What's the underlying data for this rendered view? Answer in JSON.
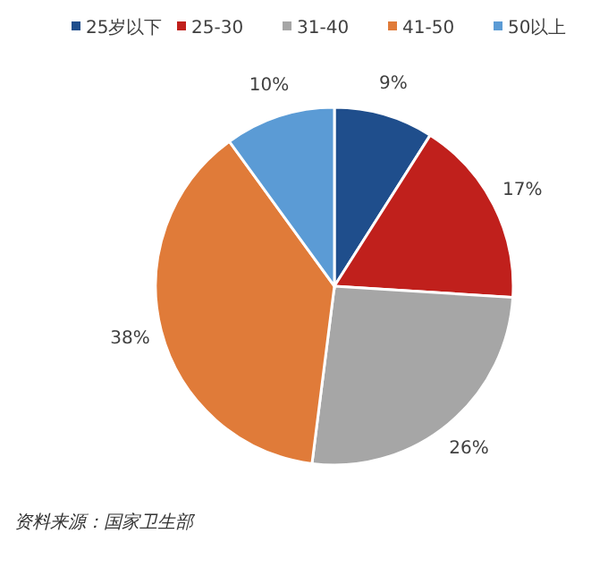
{
  "chart_data": {
    "type": "pie",
    "categories": [
      "25岁以下",
      "25-30",
      "31-40",
      "41-50",
      "50以上"
    ],
    "values": [
      9,
      17,
      26,
      38,
      10
    ],
    "colors": [
      "#1f4e8c",
      "#c0201c",
      "#a6a6a6",
      "#e07b39",
      "#5b9bd5"
    ],
    "value_labels": [
      "9%",
      "17%",
      "26%",
      "38%",
      "10%"
    ],
    "legend": "top right",
    "annotations": [
      "资料来源：国家卫生部"
    ]
  }
}
